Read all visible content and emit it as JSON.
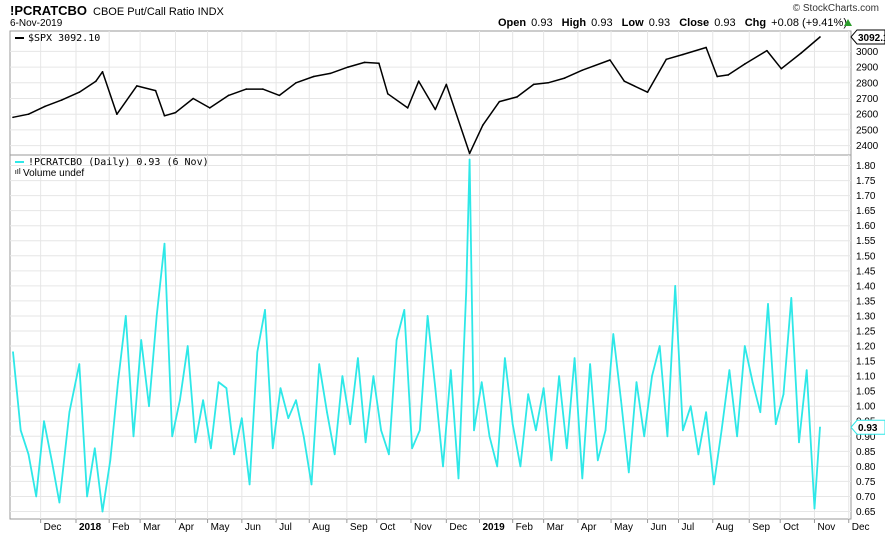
{
  "header": {
    "symbol": "!PCRATCBO",
    "description": "CBOE Put/Call Ratio INDX",
    "date": "6-Nov-2019",
    "brand": "© StockCharts.com",
    "open_label": "Open",
    "open": "0.93",
    "high_label": "High",
    "high": "0.93",
    "low_label": "Low",
    "low": "0.93",
    "close_label": "Close",
    "close": "0.93",
    "chg_label": "Chg",
    "chg": "+0.08 (+9.41%)",
    "up_color": "#2a9d2a"
  },
  "chart_data": [
    {
      "type": "line",
      "legend": "$SPX 3092.10",
      "last_value_label": "3092.1",
      "y_ticks": [
        2400,
        2500,
        2600,
        2700,
        2800,
        2900,
        3000
      ],
      "ylim": [
        2340,
        3130
      ],
      "color": "#000000",
      "x": [
        "2017-11-06",
        "2017-11-20",
        "2017-12-05",
        "2017-12-20",
        "2018-01-05",
        "2018-01-20",
        "2018-01-26",
        "2018-02-08",
        "2018-02-26",
        "2018-03-15",
        "2018-03-23",
        "2018-04-02",
        "2018-04-18",
        "2018-05-03",
        "2018-05-20",
        "2018-06-05",
        "2018-06-20",
        "2018-07-05",
        "2018-07-20",
        "2018-08-05",
        "2018-08-20",
        "2018-09-05",
        "2018-09-20",
        "2018-10-03",
        "2018-10-11",
        "2018-10-29",
        "2018-11-08",
        "2018-11-23",
        "2018-12-03",
        "2018-12-24",
        "2019-01-05",
        "2019-01-20",
        "2019-02-05",
        "2019-02-20",
        "2019-03-05",
        "2019-03-20",
        "2019-04-05",
        "2019-04-30",
        "2019-05-13",
        "2019-06-03",
        "2019-06-20",
        "2019-07-05",
        "2019-07-26",
        "2019-08-05",
        "2019-08-15",
        "2019-08-30",
        "2019-09-19",
        "2019-10-02",
        "2019-10-20",
        "2019-11-06"
      ],
      "values": [
        2580,
        2600,
        2650,
        2690,
        2740,
        2810,
        2870,
        2600,
        2780,
        2750,
        2590,
        2610,
        2700,
        2640,
        2720,
        2760,
        2760,
        2720,
        2800,
        2840,
        2860,
        2900,
        2930,
        2925,
        2730,
        2640,
        2810,
        2630,
        2790,
        2350,
        2530,
        2680,
        2710,
        2790,
        2800,
        2830,
        2880,
        2945,
        2810,
        2740,
        2950,
        2980,
        3025,
        2840,
        2850,
        2920,
        3005,
        2890,
        2990,
        3092
      ]
    },
    {
      "type": "line",
      "legend": "!PCRATCBO (Daily) 0.93 (6 Nov)",
      "sublegend": "Volume undef",
      "last_value_label": "0.93",
      "y_ticks": [
        0.65,
        0.7,
        0.75,
        0.8,
        0.85,
        0.9,
        0.95,
        1.0,
        1.05,
        1.1,
        1.15,
        1.2,
        1.25,
        1.3,
        1.35,
        1.4,
        1.45,
        1.5,
        1.55,
        1.6,
        1.65,
        1.7,
        1.75,
        1.8
      ],
      "ylim": [
        0.625,
        1.835
      ],
      "color": "#2ee8e8",
      "x": [
        "2017-11-06",
        "2017-11-13",
        "2017-11-20",
        "2017-11-27",
        "2017-12-04",
        "2017-12-11",
        "2017-12-18",
        "2017-12-27",
        "2018-01-05",
        "2018-01-12",
        "2018-01-19",
        "2018-01-26",
        "2018-02-02",
        "2018-02-09",
        "2018-02-16",
        "2018-02-23",
        "2018-03-02",
        "2018-03-09",
        "2018-03-16",
        "2018-03-23",
        "2018-03-30",
        "2018-04-06",
        "2018-04-13",
        "2018-04-20",
        "2018-04-27",
        "2018-05-04",
        "2018-05-11",
        "2018-05-18",
        "2018-05-25",
        "2018-06-01",
        "2018-06-08",
        "2018-06-15",
        "2018-06-22",
        "2018-06-29",
        "2018-07-06",
        "2018-07-13",
        "2018-07-20",
        "2018-07-27",
        "2018-08-03",
        "2018-08-10",
        "2018-08-17",
        "2018-08-24",
        "2018-08-31",
        "2018-09-07",
        "2018-09-14",
        "2018-09-21",
        "2018-09-28",
        "2018-10-05",
        "2018-10-12",
        "2018-10-19",
        "2018-10-26",
        "2018-11-02",
        "2018-11-09",
        "2018-11-16",
        "2018-11-23",
        "2018-11-30",
        "2018-12-07",
        "2018-12-14",
        "2018-12-21",
        "2018-12-24",
        "2018-12-28",
        "2019-01-04",
        "2019-01-11",
        "2019-01-18",
        "2019-01-25",
        "2019-02-01",
        "2019-02-08",
        "2019-02-15",
        "2019-02-22",
        "2019-03-01",
        "2019-03-08",
        "2019-03-15",
        "2019-03-22",
        "2019-03-29",
        "2019-04-05",
        "2019-04-12",
        "2019-04-19",
        "2019-04-26",
        "2019-05-03",
        "2019-05-10",
        "2019-05-17",
        "2019-05-24",
        "2019-05-31",
        "2019-06-07",
        "2019-06-14",
        "2019-06-21",
        "2019-06-28",
        "2019-07-05",
        "2019-07-12",
        "2019-07-19",
        "2019-07-26",
        "2019-08-02",
        "2019-08-09",
        "2019-08-16",
        "2019-08-23",
        "2019-08-30",
        "2019-09-06",
        "2019-09-13",
        "2019-09-20",
        "2019-09-27",
        "2019-10-04",
        "2019-10-11",
        "2019-10-18",
        "2019-10-25",
        "2019-11-01",
        "2019-11-06"
      ],
      "values": [
        1.18,
        0.92,
        0.84,
        0.7,
        0.95,
        0.82,
        0.68,
        0.98,
        1.14,
        0.7,
        0.86,
        0.65,
        0.82,
        1.08,
        1.3,
        0.9,
        1.22,
        1.0,
        1.3,
        1.54,
        0.9,
        1.02,
        1.2,
        0.88,
        1.02,
        0.86,
        1.08,
        1.06,
        0.84,
        0.96,
        0.74,
        1.18,
        1.32,
        0.86,
        1.06,
        0.96,
        1.02,
        0.9,
        0.74,
        1.14,
        0.98,
        0.84,
        1.1,
        0.94,
        1.16,
        0.88,
        1.1,
        0.92,
        0.84,
        1.22,
        1.32,
        0.86,
        0.92,
        1.3,
        1.06,
        0.8,
        1.12,
        0.76,
        1.38,
        1.82,
        0.92,
        1.08,
        0.9,
        0.8,
        1.16,
        0.94,
        0.8,
        1.04,
        0.92,
        1.06,
        0.82,
        1.1,
        0.86,
        1.16,
        0.76,
        1.14,
        0.82,
        0.92,
        1.24,
        1.02,
        0.78,
        1.08,
        0.9,
        1.1,
        1.2,
        0.9,
        1.4,
        0.92,
        1.0,
        0.84,
        0.98,
        0.74,
        0.92,
        1.12,
        0.9,
        1.2,
        1.08,
        0.98,
        1.34,
        0.94,
        1.04,
        1.36,
        0.88,
        1.12,
        0.66,
        0.93
      ]
    }
  ],
  "x_axis": {
    "labels": [
      {
        "text": "Dec",
        "date": "2017-12-01",
        "bold": false
      },
      {
        "text": "2018",
        "date": "2018-01-02",
        "bold": true
      },
      {
        "text": "Feb",
        "date": "2018-02-01",
        "bold": false
      },
      {
        "text": "Mar",
        "date": "2018-03-01",
        "bold": false
      },
      {
        "text": "Apr",
        "date": "2018-04-02",
        "bold": false
      },
      {
        "text": "May",
        "date": "2018-05-01",
        "bold": false
      },
      {
        "text": "Jun",
        "date": "2018-06-01",
        "bold": false
      },
      {
        "text": "Jul",
        "date": "2018-07-02",
        "bold": false
      },
      {
        "text": "Aug",
        "date": "2018-08-01",
        "bold": false
      },
      {
        "text": "Sep",
        "date": "2018-09-04",
        "bold": false
      },
      {
        "text": "Oct",
        "date": "2018-10-01",
        "bold": false
      },
      {
        "text": "Nov",
        "date": "2018-11-01",
        "bold": false
      },
      {
        "text": "Dec",
        "date": "2018-12-03",
        "bold": false
      },
      {
        "text": "2019",
        "date": "2019-01-02",
        "bold": true
      },
      {
        "text": "Feb",
        "date": "2019-02-01",
        "bold": false
      },
      {
        "text": "Mar",
        "date": "2019-03-01",
        "bold": false
      },
      {
        "text": "Apr",
        "date": "2019-04-01",
        "bold": false
      },
      {
        "text": "May",
        "date": "2019-05-01",
        "bold": false
      },
      {
        "text": "Jun",
        "date": "2019-06-03",
        "bold": false
      },
      {
        "text": "Jul",
        "date": "2019-07-01",
        "bold": false
      },
      {
        "text": "Aug",
        "date": "2019-08-01",
        "bold": false
      },
      {
        "text": "Sep",
        "date": "2019-09-03",
        "bold": false
      },
      {
        "text": "Oct",
        "date": "2019-10-01",
        "bold": false
      },
      {
        "text": "Nov",
        "date": "2019-11-01",
        "bold": false
      },
      {
        "text": "Dec",
        "date": "2019-12-02",
        "bold": false
      }
    ]
  }
}
